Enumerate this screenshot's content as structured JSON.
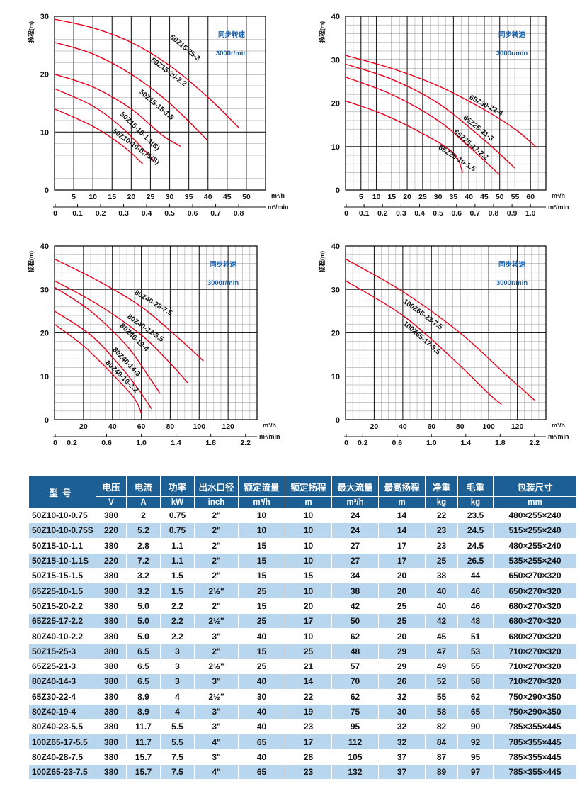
{
  "chart_data": [
    {
      "type": "line",
      "ylabel": "扬程(m)",
      "xlabel": "m³/h",
      "x2label": "m³/min",
      "speed_label": "同步转速",
      "speed_value": "3000r/min",
      "xlim": [
        0,
        55
      ],
      "ylim": [
        0,
        30
      ],
      "yticks": [
        0,
        10,
        20,
        30
      ],
      "xticks": [
        5,
        10,
        15,
        20,
        25,
        30,
        35,
        40,
        45,
        50
      ],
      "x2ticks": [
        "0",
        "0.1",
        "0.2",
        "0.3",
        "0.4",
        "0.5",
        "0.6",
        "0.7",
        "0.8"
      ],
      "series": [
        {
          "name": "50Z15-25-3",
          "points": [
            [
              0,
              29.5
            ],
            [
              10,
              28
            ],
            [
              20,
              25.5
            ],
            [
              30,
              21.5
            ],
            [
              40,
              16
            ],
            [
              48,
              10.8
            ]
          ]
        },
        {
          "name": "50Z15-20-2.2",
          "points": [
            [
              0,
              25.5
            ],
            [
              10,
              23.5
            ],
            [
              20,
              20
            ],
            [
              30,
              15
            ],
            [
              40,
              8.5
            ]
          ]
        },
        {
          "name": "50Z15-15-1.5",
          "points": [
            [
              0,
              20
            ],
            [
              10,
              17.8
            ],
            [
              20,
              14
            ],
            [
              28,
              9.5
            ],
            [
              33,
              7.5
            ]
          ]
        },
        {
          "name": "50Z15-10-1.1(S)",
          "points": [
            [
              0,
              17.5
            ],
            [
              10,
              14.5
            ],
            [
              18,
              10.5
            ],
            [
              26,
              5
            ]
          ]
        },
        {
          "name": "50Z10-10-0.75(S)",
          "points": [
            [
              0,
              14
            ],
            [
              10,
              11
            ],
            [
              18,
              7.5
            ],
            [
              23,
              4.5
            ]
          ]
        }
      ]
    },
    {
      "type": "line",
      "ylabel": "扬程(m)",
      "xlabel": "m³/h",
      "x2label": "m³/min",
      "speed_label": "同步转速",
      "speed_value": "3000r/min",
      "xlim": [
        0,
        65
      ],
      "ylim": [
        0,
        40
      ],
      "yticks": [
        0,
        10,
        20,
        30,
        40
      ],
      "xticks": [
        5,
        10,
        15,
        20,
        25,
        30,
        35,
        40,
        45,
        50,
        55,
        60
      ],
      "x2ticks": [
        "0",
        "0.1",
        "0.2",
        "0.3",
        "0.4",
        "0.5",
        "0.6",
        "0.7",
        "0.8",
        "0.9",
        "1.0"
      ],
      "series": [
        {
          "name": "65Z30-22-4",
          "points": [
            [
              0,
              31
            ],
            [
              15,
              28
            ],
            [
              30,
              24
            ],
            [
              45,
              18.5
            ],
            [
              55,
              14
            ],
            [
              62,
              9.8
            ]
          ]
        },
        {
          "name": "65Z25-21-3",
          "points": [
            [
              0,
              29
            ],
            [
              15,
              25.5
            ],
            [
              30,
              20
            ],
            [
              45,
              11.5
            ],
            [
              55,
              5
            ]
          ]
        },
        {
          "name": "65Z25-17-2.2",
          "points": [
            [
              0,
              26
            ],
            [
              15,
              22
            ],
            [
              30,
              16
            ],
            [
              40,
              10
            ],
            [
              50,
              3.5
            ]
          ]
        },
        {
          "name": "65Z25-10-1.5",
          "points": [
            [
              0,
              20.5
            ],
            [
              12,
              17.5
            ],
            [
              25,
              13
            ],
            [
              35,
              8.5
            ],
            [
              38,
              4
            ]
          ]
        }
      ]
    },
    {
      "type": "line",
      "ylabel": "扬程(m)",
      "xlabel": "m³/h",
      "x2label": "m³/min",
      "speed_label": "同步转速",
      "speed_value": "3000r/min",
      "xlim": [
        0,
        140
      ],
      "ylim": [
        0,
        40
      ],
      "yticks": [
        0,
        10,
        20,
        30,
        40
      ],
      "xticks": [
        20,
        40,
        60,
        80,
        100,
        120
      ],
      "x2ticks": [
        "0",
        "0.2",
        "0.6",
        "1.0",
        "1.4",
        "1.8",
        "2.2"
      ],
      "series": [
        {
          "name": "80Z40-28-7.5",
          "points": [
            [
              0,
              37
            ],
            [
              30,
              32
            ],
            [
              60,
              26
            ],
            [
              85,
              19
            ],
            [
              103,
              13.5
            ]
          ]
        },
        {
          "name": "80Z40-23-5.5",
          "points": [
            [
              0,
              32
            ],
            [
              30,
              26.5
            ],
            [
              60,
              19.5
            ],
            [
              80,
              13
            ],
            [
              92,
              8.5
            ]
          ]
        },
        {
          "name": "80Z40-19-4",
          "points": [
            [
              0,
              30.5
            ],
            [
              25,
              25
            ],
            [
              50,
              17
            ],
            [
              65,
              10
            ],
            [
              73,
              6
            ]
          ]
        },
        {
          "name": "80Z40-14-3",
          "points": [
            [
              0,
              25
            ],
            [
              25,
              19.5
            ],
            [
              45,
              12.5
            ],
            [
              58,
              7
            ],
            [
              67,
              2.5
            ]
          ]
        },
        {
          "name": "80Z40-10-2.2",
          "points": [
            [
              0,
              22
            ],
            [
              20,
              17
            ],
            [
              40,
              10.5
            ],
            [
              55,
              5
            ],
            [
              60,
              1.5
            ]
          ]
        }
      ]
    },
    {
      "type": "line",
      "ylabel": "扬程(m)",
      "xlabel": "m³/h",
      "x2label": "m³/min",
      "speed_label": "同步转速",
      "speed_value": "3000r/min",
      "xlim": [
        0,
        140
      ],
      "ylim": [
        0,
        40
      ],
      "yticks": [
        0,
        10,
        20,
        30,
        40
      ],
      "xticks": [
        20,
        40,
        60,
        80,
        100,
        120
      ],
      "x2ticks": [
        "0",
        "0.2",
        "0.6",
        "1.0",
        "1.4",
        "1.8",
        "2.2"
      ],
      "series": [
        {
          "name": "100Z65-23-7.5",
          "points": [
            [
              0,
              37
            ],
            [
              40,
              29.5
            ],
            [
              80,
              20
            ],
            [
              110,
              11
            ],
            [
              132,
              4.5
            ]
          ]
        },
        {
          "name": "100Z65-17-5.5",
          "points": [
            [
              0,
              32
            ],
            [
              40,
              24
            ],
            [
              75,
              14
            ],
            [
              100,
              6
            ],
            [
              109,
              3.5
            ]
          ]
        }
      ]
    }
  ],
  "spec_table": {
    "headers": [
      "型号",
      "电压",
      "电流",
      "功率",
      "出水口径",
      "额定流量",
      "额定扬程",
      "最大流量",
      "最高扬程",
      "净重",
      "毛重",
      "包装尺寸"
    ],
    "units": [
      "V",
      "A",
      "kW",
      "inch",
      "m³/h",
      "m",
      "m³/h",
      "m",
      "kg",
      "kg",
      "mm"
    ],
    "rows": [
      [
        "50Z10-10-0.75",
        "380",
        "2",
        "0.75",
        "2\"",
        "10",
        "10",
        "24",
        "14",
        "22",
        "23.5",
        "480×255×240"
      ],
      [
        "50Z10-10-0.75S",
        "220",
        "5.2",
        "0.75",
        "2\"",
        "10",
        "10",
        "24",
        "14",
        "23",
        "24.5",
        "515×255×240"
      ],
      [
        "50Z15-10-1.1",
        "380",
        "2.8",
        "1.1",
        "2\"",
        "15",
        "10",
        "27",
        "17",
        "23",
        "24.5",
        "480×255×240"
      ],
      [
        "50Z15-10-1.1S",
        "220",
        "7.2",
        "1.1",
        "2\"",
        "15",
        "10",
        "27",
        "17",
        "25",
        "26.5",
        "535×255×240"
      ],
      [
        "50Z15-15-1.5",
        "380",
        "3.2",
        "1.5",
        "2\"",
        "15",
        "15",
        "34",
        "20",
        "38",
        "44",
        "650×270×320"
      ],
      [
        "65Z25-10-1.5",
        "380",
        "3.2",
        "1.5",
        "2½\"",
        "25",
        "10",
        "38",
        "20",
        "40",
        "46",
        "650×270×320"
      ],
      [
        "50Z15-20-2.2",
        "380",
        "5.0",
        "2.2",
        "2\"",
        "15",
        "20",
        "42",
        "25",
        "40",
        "46",
        "680×270×320"
      ],
      [
        "65Z25-17-2.2",
        "380",
        "5.0",
        "2.2",
        "2½\"",
        "25",
        "17",
        "50",
        "25",
        "42",
        "48",
        "680×270×320"
      ],
      [
        "80Z40-10-2.2",
        "380",
        "5.0",
        "2.2",
        "3\"",
        "40",
        "10",
        "62",
        "20",
        "45",
        "51",
        "680×270×320"
      ],
      [
        "50Z15-25-3",
        "380",
        "6.5",
        "3",
        "2\"",
        "15",
        "25",
        "48",
        "29",
        "47",
        "53",
        "710×270×320"
      ],
      [
        "65Z25-21-3",
        "380",
        "6.5",
        "3",
        "2½\"",
        "25",
        "21",
        "57",
        "29",
        "49",
        "55",
        "710×270×320"
      ],
      [
        "80Z40-14-3",
        "380",
        "6.5",
        "3",
        "3\"",
        "40",
        "14",
        "70",
        "26",
        "52",
        "58",
        "710×270×320"
      ],
      [
        "65Z30-22-4",
        "380",
        "8.9",
        "4",
        "2½\"",
        "30",
        "22",
        "62",
        "32",
        "55",
        "62",
        "750×290×350"
      ],
      [
        "80Z40-19-4",
        "380",
        "8.9",
        "4",
        "3\"",
        "40",
        "19",
        "75",
        "30",
        "58",
        "65",
        "750×290×350"
      ],
      [
        "80Z40-23-5.5",
        "380",
        "11.7",
        "5.5",
        "3\"",
        "40",
        "23",
        "95",
        "32",
        "82",
        "90",
        "785×355×445"
      ],
      [
        "100Z65-17-5.5",
        "380",
        "11.7",
        "5.5",
        "4\"",
        "65",
        "17",
        "112",
        "32",
        "84",
        "92",
        "785×355×445"
      ],
      [
        "80Z40-28-7.5",
        "380",
        "15.7",
        "7.5",
        "3\"",
        "40",
        "28",
        "105",
        "37",
        "87",
        "95",
        "785×355×445"
      ],
      [
        "100Z65-23-7.5",
        "380",
        "15.7",
        "7.5",
        "4\"",
        "65",
        "23",
        "132",
        "37",
        "89",
        "97",
        "785×355×445"
      ]
    ]
  },
  "colors": {
    "curve": "#e8001c",
    "grid": "#9a9a9a",
    "speed_text": "#1a5fa8",
    "table_header": "#1c5f94",
    "table_stripe": "#b9d6ef"
  }
}
